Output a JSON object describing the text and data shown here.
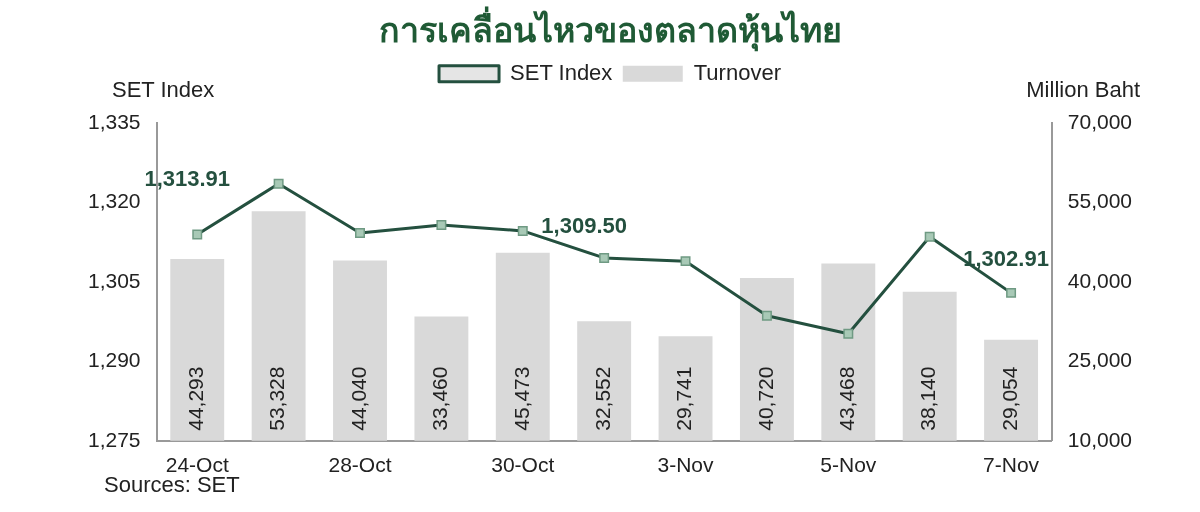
{
  "chart_data": {
    "type": "bar",
    "title": "การเคลื่อนไหวของตลาดหุ้นไทย",
    "ylabel": "SET Index",
    "y2label": "Million Baht",
    "categories": [
      "24-Oct",
      null,
      "28-Oct",
      null,
      "30-Oct",
      null,
      "3-Nov",
      null,
      "5-Nov",
      null,
      "7-Nov"
    ],
    "series": [
      {
        "name": "Turnover",
        "axis": "y2",
        "color": "#d9d9d9",
        "values": [
          44293,
          53328,
          44040,
          33460,
          45473,
          32552,
          29741,
          40720,
          43468,
          38140,
          29054
        ],
        "value_labels": [
          "44,293",
          "53,328",
          "44,040",
          "33,460",
          "45,473",
          "32,552",
          "29,741",
          "40,720",
          "43,468",
          "38,140",
          "29,054"
        ]
      },
      {
        "name": "SET Index",
        "type": "line",
        "color": "#24503f",
        "marker": "square",
        "values": [
          1313.91,
          1323.5,
          1314.2,
          1315.7,
          1314.6,
          1309.5,
          1308.9,
          1298.6,
          1295.2,
          1313.5,
          1302.91
        ],
        "value_labels": [
          "1,313.91",
          null,
          null,
          null,
          null,
          "1,309.50",
          null,
          null,
          null,
          null,
          "1,302.91"
        ]
      }
    ],
    "ylim": [
      1275,
      1335
    ],
    "yticks": [
      {
        "value": 1275,
        "label": "1,275"
      },
      {
        "value": 1290,
        "label": "1,290"
      },
      {
        "value": 1305,
        "label": "1,305"
      },
      {
        "value": 1320,
        "label": "1,320"
      },
      {
        "value": 1335,
        "label": "1,335"
      }
    ],
    "y2lim": [
      10000,
      70000
    ],
    "y2ticks": [
      {
        "value": 10000,
        "label": "10,000"
      },
      {
        "value": 25000,
        "label": "25,000"
      },
      {
        "value": 40000,
        "label": "40,000"
      },
      {
        "value": 55000,
        "label": "55,000"
      },
      {
        "value": 70000,
        "label": "70,000"
      }
    ],
    "legend": "top",
    "grid": false,
    "annotations": [
      "Sources: SET"
    ]
  }
}
